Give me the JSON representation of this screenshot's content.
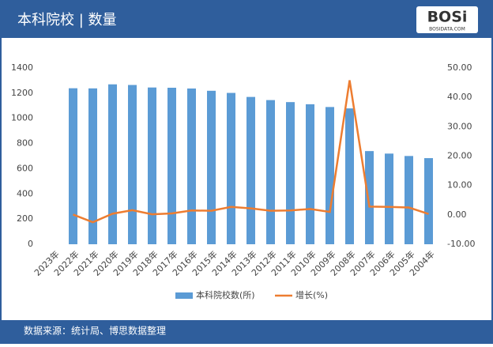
{
  "header": {
    "title": "本科院校 | 数量",
    "logo": "BOSi",
    "logo_sub": "BOSIDATA.COM"
  },
  "footer": {
    "source": "数据来源：统计局、博思数据整理"
  },
  "chart_data": {
    "type": "bar-line",
    "categories": [
      "2023年",
      "2022年",
      "2021年",
      "2020年",
      "2019年",
      "2018年",
      "2017年",
      "2016年",
      "2015年",
      "2014年",
      "2013年",
      "2012年",
      "2011年",
      "2010年",
      "2009年",
      "2008年",
      "2007年",
      "2006年",
      "2005年",
      "2004年"
    ],
    "series": [
      {
        "name": "本科院校数(所)",
        "color": "#5b9bd5",
        "type": "bar",
        "values": [
          null,
          1239,
          1238,
          1270,
          1265,
          1245,
          1243,
          1237,
          1219,
          1202,
          1170,
          1145,
          1129,
          1112,
          1090,
          1079,
          740,
          720,
          701,
          684
        ]
      },
      {
        "name": "增长(%)",
        "color": "#ed7d31",
        "type": "line",
        "axis": "y2",
        "values": [
          null,
          0.1,
          -2.5,
          0.4,
          1.6,
          0.2,
          0.5,
          1.5,
          1.4,
          2.7,
          2.2,
          1.4,
          1.5,
          2.0,
          1.0,
          45.8,
          2.8,
          2.7,
          2.5,
          0.3
        ]
      }
    ],
    "ylim": [
      0,
      1400
    ],
    "yticks": [
      0,
      200,
      400,
      600,
      800,
      1000,
      1200,
      1400
    ],
    "y2lim": [
      -10,
      50
    ],
    "y2ticks": [
      {
        "value": -10,
        "label": "-10.00"
      },
      {
        "value": 0,
        "label": "0.00"
      },
      {
        "value": 10,
        "label": "10.00"
      },
      {
        "value": 20,
        "label": "20.00"
      },
      {
        "value": 30,
        "label": "30.00"
      },
      {
        "value": 40,
        "label": "40.00"
      },
      {
        "value": 50,
        "label": "50.00"
      }
    ],
    "legend": "bottom",
    "grid": false
  }
}
